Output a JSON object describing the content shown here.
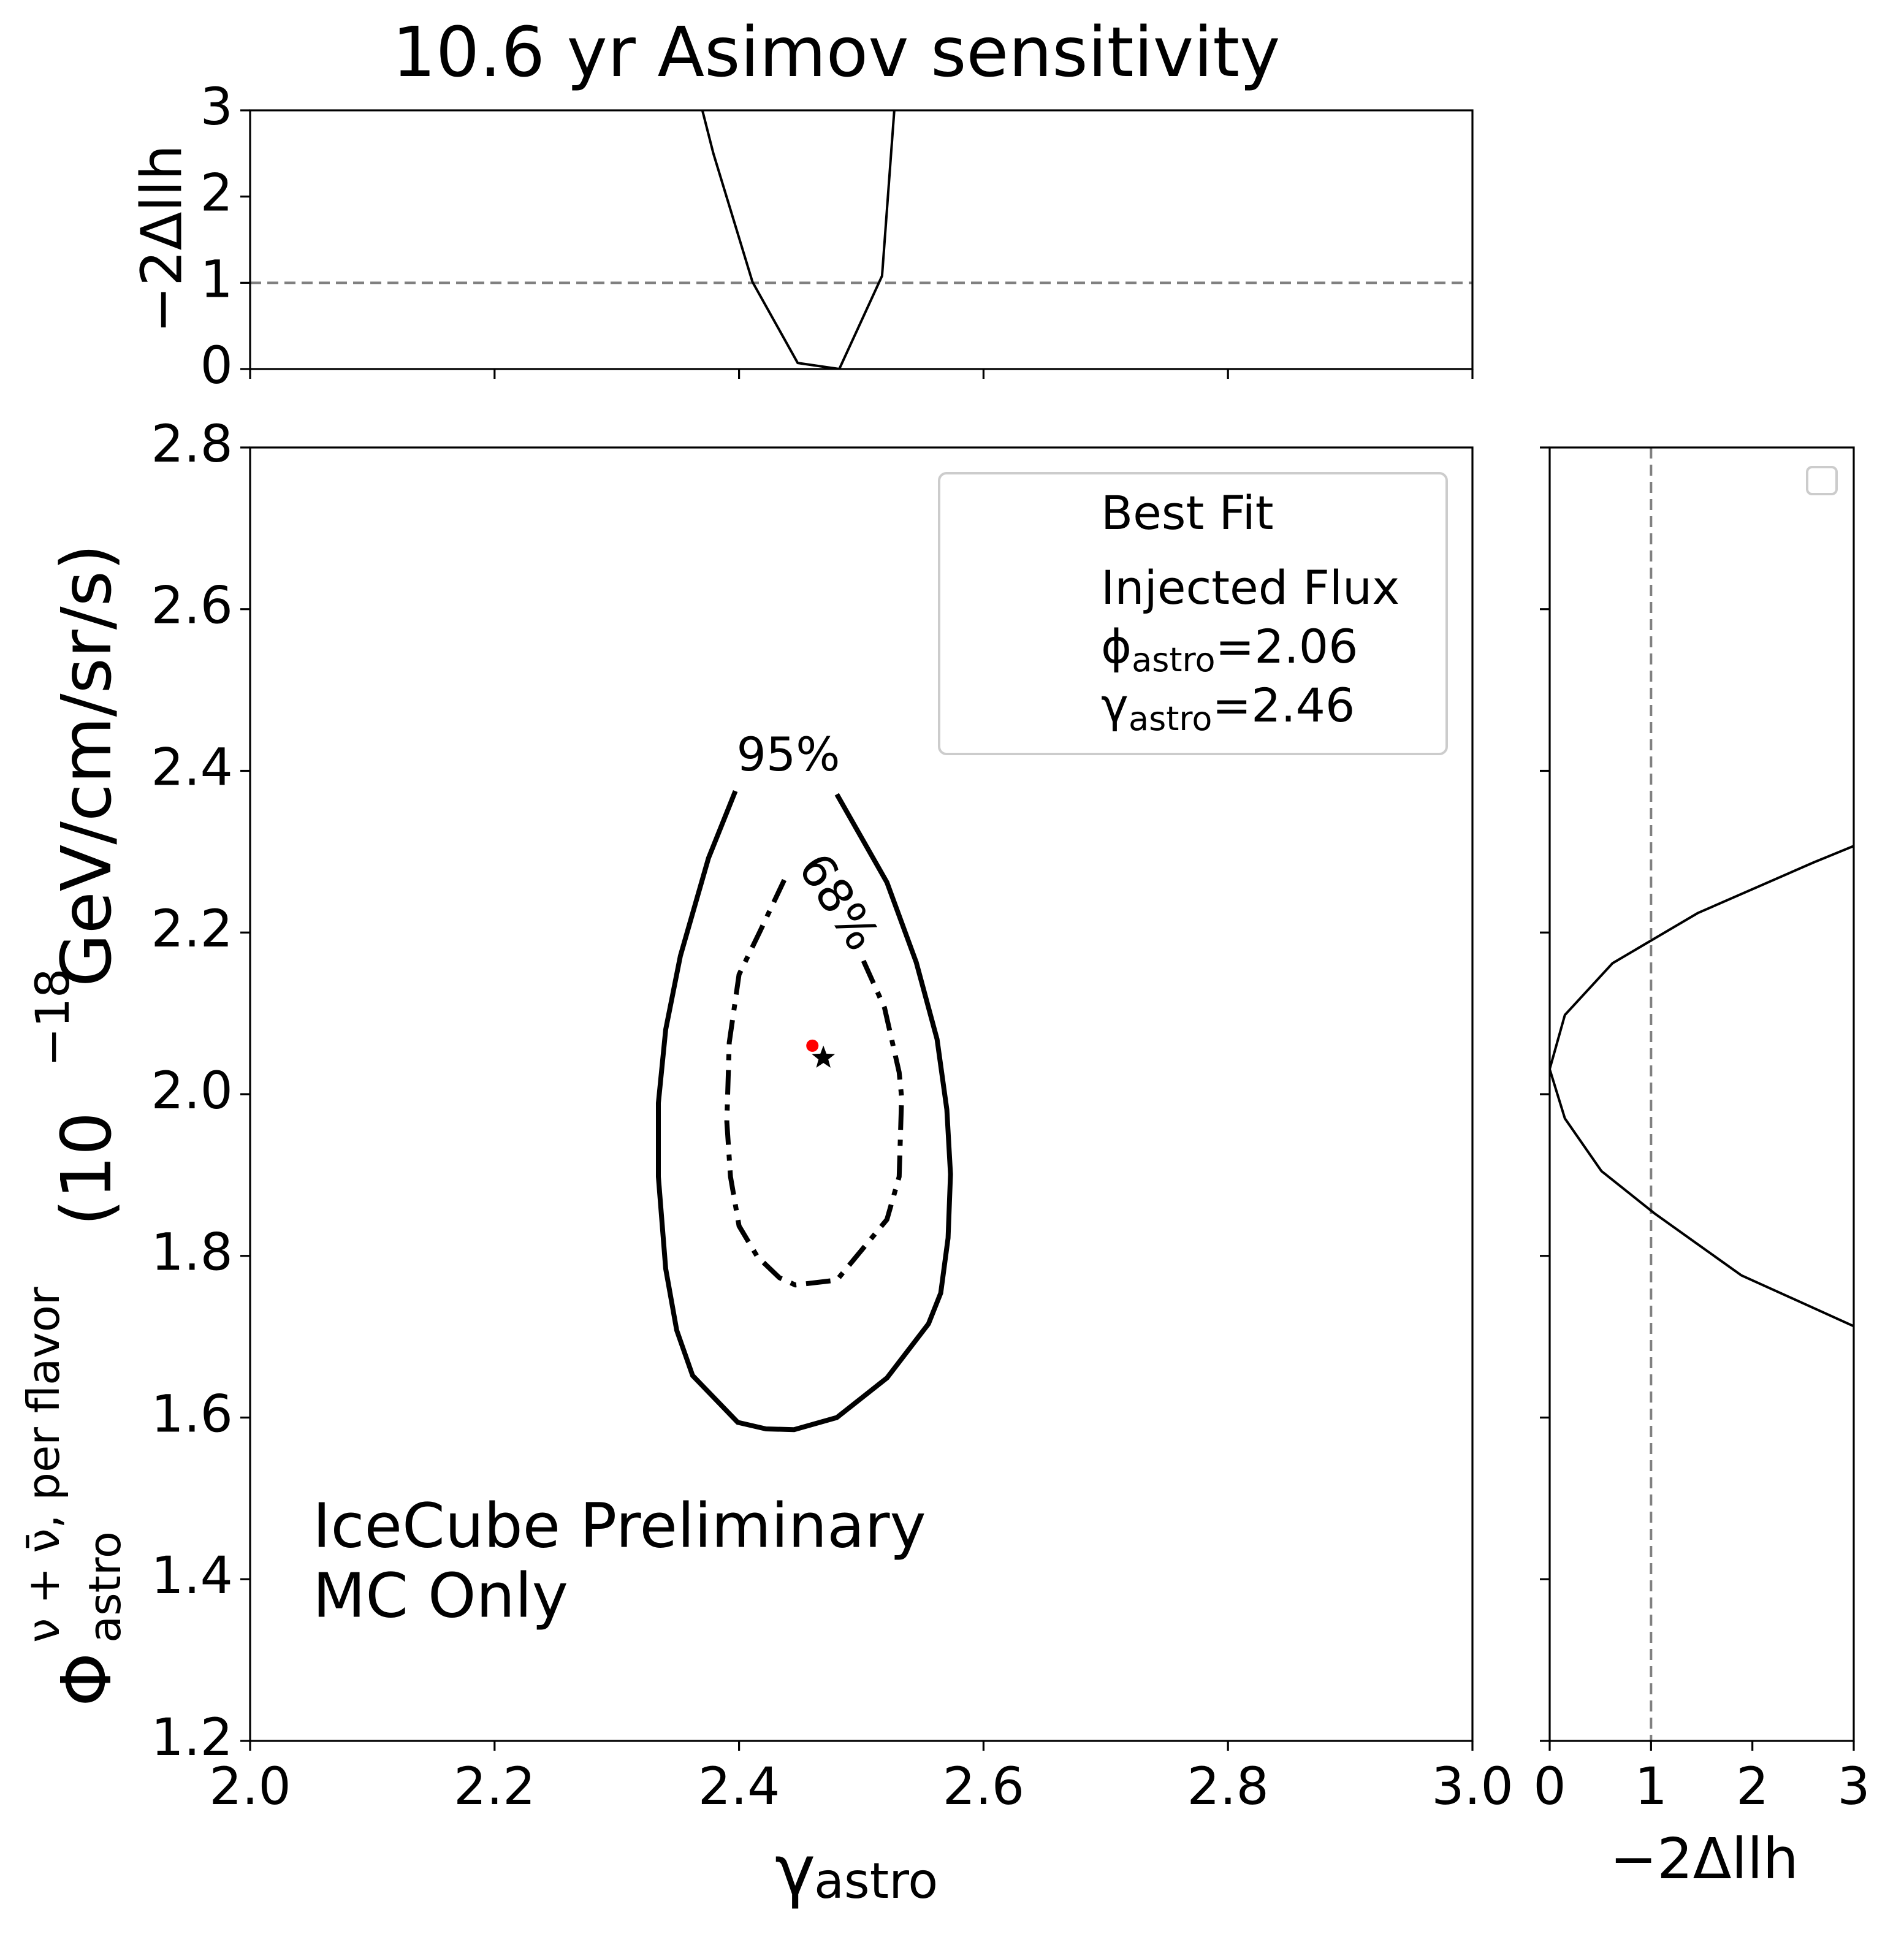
{
  "chart_data": [
    {
      "type": "line",
      "title": "10.6 yr Asimov sensitivity",
      "ylabel": "−2Δllh",
      "xlim": [
        2,
        3
      ],
      "ylim": [
        0,
        3
      ],
      "xticks": [
        2,
        2.2,
        2.4,
        2.6,
        2.8,
        3
      ],
      "yticks": [
        0,
        1,
        2,
        3
      ],
      "hline": {
        "value": 1,
        "color": "#808080",
        "dash": "dashed"
      },
      "series": [
        {
          "color": "#000000",
          "dash": "solid",
          "x": [
            2.37,
            2.379,
            2.411,
            2.448,
            2.482,
            2.517,
            2.527
          ],
          "y": [
            3,
            2.5,
            1.01,
            0.07,
            0,
            1.08,
            3
          ]
        }
      ]
    },
    {
      "type": "line",
      "xlabel": {
        "symbol": "γ",
        "sub": "astro"
      },
      "ylabel": {
        "symbol": "Φ",
        "sup": "ν + ν̄, per flavor",
        "sub": "astro",
        "open": "(10",
        "exp": "−18",
        "unit": " GeV/cm/sr/s)"
      },
      "xlim": [
        2,
        3
      ],
      "ylim": [
        1.2,
        2.8
      ],
      "xticks": [
        {
          "value": 2,
          "label": "2.0"
        },
        2.2,
        2.4,
        2.6,
        2.8,
        {
          "value": 3,
          "label": "3.0"
        }
      ],
      "yticks": [
        1.2,
        1.4,
        1.6,
        1.8,
        {
          "value": 2,
          "label": "2.0"
        },
        2.2,
        2.4,
        2.6,
        2.8
      ],
      "series": [
        {
          "name": "95%",
          "color": "#000000",
          "dash": "solid",
          "x": [
            2.397,
            2.375,
            2.352,
            2.34,
            2.334,
            2.334,
            2.34,
            2.349,
            2.362,
            2.399,
            2.422,
            2.445,
            2.48,
            2.521,
            2.555,
            2.565,
            2.571,
            2.573,
            2.57,
            2.562,
            2.545,
            2.521,
            2.48
          ],
          "y": [
            2.375,
            2.292,
            2.171,
            2.08,
            1.989,
            1.898,
            1.784,
            1.708,
            1.652,
            1.594,
            1.586,
            1.585,
            1.6,
            1.649,
            1.716,
            1.754,
            1.822,
            1.901,
            1.981,
            2.068,
            2.163,
            2.262,
            2.371
          ]
        },
        {
          "name": "68%",
          "color": "#000000",
          "dash": "dashdot",
          "x": [
            2.437,
            2.417,
            2.4,
            2.392,
            2.39,
            2.393,
            2.4,
            2.415,
            2.433,
            2.446,
            2.48,
            2.521,
            2.531,
            2.533,
            2.531,
            2.519,
            2.5
          ],
          "y": [
            2.265,
            2.201,
            2.148,
            2.064,
            1.966,
            1.898,
            1.837,
            1.799,
            1.773,
            1.764,
            1.77,
            1.845,
            1.898,
            1.996,
            2.027,
            2.107,
            2.171
          ]
        }
      ],
      "points": [
        {
          "name": "Best Fit",
          "marker": "star",
          "color": "#000000",
          "x": 2.469,
          "y": 2.045
        },
        {
          "name": "Injected Flux",
          "marker": "dot",
          "color": "#ff0000",
          "x": 2.46,
          "y": 2.06
        }
      ],
      "legend_extra": [
        {
          "symbol": "ϕ",
          "sub": "astro",
          "rest": "=2.06"
        },
        {
          "symbol": "γ",
          "sub": "astro",
          "rest": "=2.46"
        }
      ],
      "legend": "upper right",
      "annotations": [
        "IceCube Preliminary",
        "MC Only"
      ],
      "annotation_color": "#ff0000"
    },
    {
      "type": "line",
      "xlabel": "−2Δllh",
      "xlim": [
        0,
        3
      ],
      "ylim": [
        1.2,
        2.8
      ],
      "xticks": [
        0,
        1,
        2,
        3
      ],
      "yticks": [
        1.2,
        1.4,
        1.6,
        1.8,
        2,
        2.2,
        2.4,
        2.6,
        2.8
      ],
      "vline": {
        "value": 1,
        "color": "#808080",
        "dash": "dashed"
      },
      "legend": "upper right",
      "series": [
        {
          "color": "#000000",
          "dash": "solid",
          "x": [
            3,
            2.61,
            1.46,
            0.62,
            0.15,
            0,
            0.15,
            0.51,
            1.04,
            1.89,
            3
          ],
          "y": [
            2.307,
            2.287,
            2.224,
            2.162,
            2.098,
            2.031,
            1.97,
            1.905,
            1.852,
            1.776,
            1.713
          ]
        }
      ]
    }
  ]
}
